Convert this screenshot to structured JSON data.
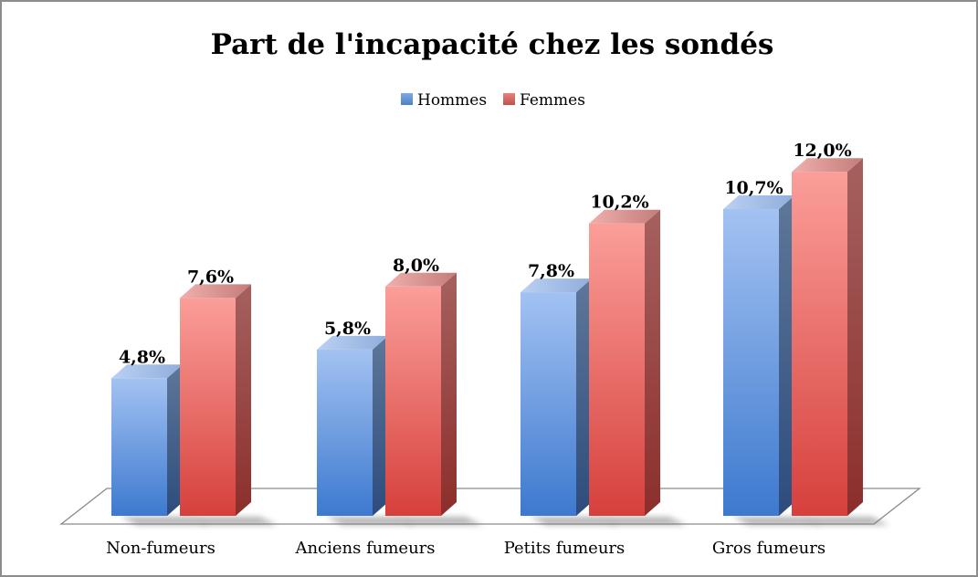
{
  "frame": {
    "border_color": "#8c8c8c",
    "background_color": "#ffffff"
  },
  "chart_data": {
    "type": "bar",
    "projection": "3d",
    "title": "Part de l'incapacité chez les sondés",
    "categories": [
      "Non-fumeurs",
      "Anciens fumeurs",
      "Petits fumeurs",
      "Gros fumeurs"
    ],
    "series": [
      {
        "name": "Hommes",
        "color": "#4F81BD",
        "values": [
          4.8,
          5.8,
          7.8,
          10.7
        ],
        "labels": [
          "4,8%",
          "5,8%",
          "7,8%",
          "10,7%"
        ],
        "shades": {
          "front": [
            "#A3C2F2",
            "#3D79CF"
          ],
          "top": [
            "#BBD0F3",
            "#8FAEDB"
          ],
          "side": [
            "#5E7799",
            "#2D4C7D"
          ],
          "legend": [
            "#7FA8EA",
            "#4F81BD"
          ]
        }
      },
      {
        "name": "Femmes",
        "color": "#C0504D",
        "values": [
          7.6,
          8.0,
          10.2,
          12.0
        ],
        "labels": [
          "7,6%",
          "8,0%",
          "10,2%",
          "12,0%"
        ],
        "shades": {
          "front": [
            "#FB9E99",
            "#D6403C"
          ],
          "top": [
            "#EFAFAC",
            "#C47C7A"
          ],
          "side": [
            "#A5615F",
            "#8C2E2B"
          ],
          "legend": [
            "#E8827E",
            "#C0504D"
          ]
        }
      }
    ],
    "data_labels": true,
    "value_suffix": "%",
    "decimal_separator": ",",
    "legend_position": "top",
    "axes": {
      "y_axis_visible": false,
      "x_axis_visible": true
    },
    "ylim": [
      0,
      12.5
    ],
    "floor_color": "#ffffff",
    "floor_edge_color": "#8a8a8a"
  }
}
